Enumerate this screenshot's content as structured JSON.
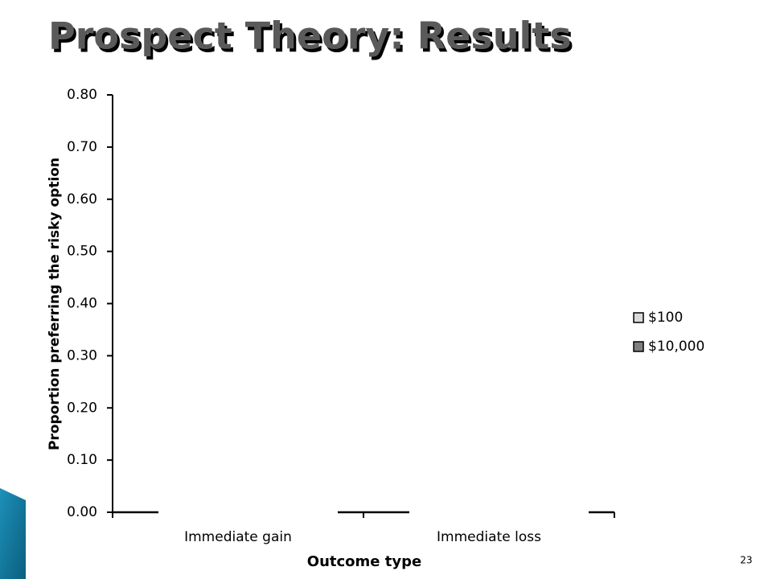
{
  "slide_title": "Prospect Theory: Results",
  "page_number": "23",
  "chart_data": {
    "type": "bar",
    "y_label": "Proportion preferring the risky option",
    "x_label": "Outcome type",
    "categories": [
      "Immediate gain",
      "Immediate loss"
    ],
    "series": [
      {
        "name": "$100",
        "color": "#d9d9d9",
        "values": [
          null,
          null
        ]
      },
      {
        "name": "$10,000",
        "color": "#7f7f7f",
        "values": [
          null,
          null
        ]
      }
    ],
    "ylim": [
      0,
      0.8
    ],
    "yticks": [
      {
        "value": 0,
        "label": "0.00"
      },
      {
        "value": 0.1,
        "label": "0.10"
      },
      {
        "value": 0.2,
        "label": "0.20"
      },
      {
        "value": 0.3,
        "label": "0.30"
      },
      {
        "value": 0.4,
        "label": "0.40"
      },
      {
        "value": 0.5,
        "label": "0.50"
      },
      {
        "value": 0.6,
        "label": "0.60"
      },
      {
        "value": 0.7,
        "label": "0.70"
      },
      {
        "value": 0.8,
        "label": "0.80"
      }
    ],
    "legend": "right"
  }
}
